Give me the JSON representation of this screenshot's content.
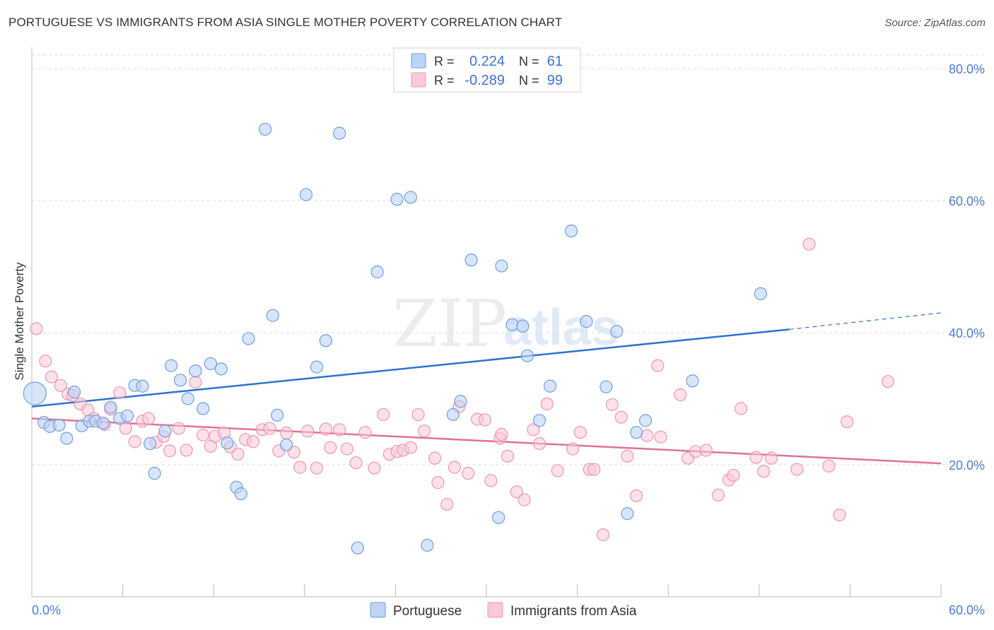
{
  "title": "PORTUGUESE VS IMMIGRANTS FROM ASIA SINGLE MOTHER POVERTY CORRELATION CHART",
  "source": "Source: ZipAtlas.com",
  "watermark": {
    "zip": "ZIP",
    "atlas": "atlas"
  },
  "colors": {
    "portuguese_fill": "#bcd3f5",
    "portuguese_stroke": "#6f9ee0",
    "portuguese_line": "#2f72d0",
    "asia_fill": "#f9c9d6",
    "asia_stroke": "#ec97b0",
    "asia_line": "#e07098",
    "axis_text": "#4a7fd4",
    "grid": "#dddddd"
  },
  "legend": {
    "rows": [
      {
        "r_label": "R =",
        "r_value": "0.224",
        "n_label": "N =",
        "n_value": "61"
      },
      {
        "r_label": "R =",
        "r_value": "-0.289",
        "n_label": "N =",
        "n_value": "99"
      }
    ]
  },
  "bottom_legend": [
    "Portuguese",
    "Immigrants from Asia"
  ],
  "chart_data": {
    "type": "scatter",
    "title": "PORTUGUESE VS IMMIGRANTS FROM ASIA SINGLE MOTHER POVERTY CORRELATION CHART",
    "xlabel": "",
    "ylabel": "Single Mother Poverty",
    "xlim": [
      0,
      60
    ],
    "ylim": [
      0,
      80
    ],
    "x_tick_labels": [
      "0.0%",
      "60.0%"
    ],
    "y_ticks": [
      20,
      40,
      60,
      80
    ],
    "y_tick_labels": [
      "20.0%",
      "40.0%",
      "60.0%",
      "80.0%"
    ],
    "grid": true,
    "legend_position": "top-center",
    "series": [
      {
        "name": "Portuguese",
        "r": 0.224,
        "n": 61,
        "trend": {
          "x0": 0,
          "y0": 28.8,
          "x1": 50,
          "y1": 40.5,
          "dash_to_x": 60,
          "dash_to_y": 43.0
        },
        "points": [
          [
            0.2,
            30.8
          ],
          [
            0.8,
            26.4
          ],
          [
            1.2,
            25.8
          ],
          [
            1.8,
            26.0
          ],
          [
            2.3,
            24.0
          ],
          [
            2.8,
            31.0
          ],
          [
            3.3,
            25.9
          ],
          [
            3.8,
            26.6
          ],
          [
            4.2,
            26.6
          ],
          [
            4.7,
            26.3
          ],
          [
            5.2,
            28.7
          ],
          [
            5.8,
            27.0
          ],
          [
            6.3,
            27.4
          ],
          [
            6.8,
            32.0
          ],
          [
            7.3,
            31.9
          ],
          [
            7.8,
            23.2
          ],
          [
            8.1,
            18.7
          ],
          [
            8.8,
            25.1
          ],
          [
            9.2,
            35.0
          ],
          [
            9.8,
            32.8
          ],
          [
            10.3,
            30.0
          ],
          [
            10.8,
            34.2
          ],
          [
            11.3,
            28.5
          ],
          [
            11.8,
            35.3
          ],
          [
            12.5,
            34.5
          ],
          [
            12.9,
            23.3
          ],
          [
            13.5,
            16.6
          ],
          [
            13.8,
            15.6
          ],
          [
            14.3,
            39.1
          ],
          [
            15.4,
            70.8
          ],
          [
            15.9,
            42.6
          ],
          [
            16.2,
            27.5
          ],
          [
            16.8,
            23.0
          ],
          [
            18.1,
            60.9
          ],
          [
            18.8,
            34.8
          ],
          [
            19.4,
            38.8
          ],
          [
            20.3,
            70.2
          ],
          [
            21.5,
            7.4
          ],
          [
            22.8,
            49.2
          ],
          [
            24.1,
            60.2
          ],
          [
            25.0,
            60.5
          ],
          [
            26.1,
            7.8
          ],
          [
            27.8,
            27.6
          ],
          [
            28.3,
            29.6
          ],
          [
            29.0,
            51.0
          ],
          [
            30.8,
            12.0
          ],
          [
            31.0,
            50.1
          ],
          [
            31.7,
            41.2
          ],
          [
            32.4,
            41.0
          ],
          [
            32.7,
            36.5
          ],
          [
            33.5,
            26.7
          ],
          [
            34.2,
            31.9
          ],
          [
            35.6,
            55.4
          ],
          [
            36.6,
            41.7
          ],
          [
            37.9,
            31.8
          ],
          [
            38.6,
            40.2
          ],
          [
            39.3,
            12.6
          ],
          [
            39.9,
            24.9
          ],
          [
            40.5,
            26.7
          ],
          [
            43.6,
            32.7
          ],
          [
            48.1,
            45.9
          ]
        ]
      },
      {
        "name": "Immigrants from Asia",
        "r": -0.289,
        "n": 99,
        "trend": {
          "x0": 0,
          "y0": 27.0,
          "x1": 60,
          "y1": 20.2
        },
        "points": [
          [
            0.3,
            40.6
          ],
          [
            0.9,
            35.7
          ],
          [
            1.3,
            33.3
          ],
          [
            1.9,
            32.0
          ],
          [
            2.4,
            30.7
          ],
          [
            2.7,
            30.5
          ],
          [
            3.2,
            29.2
          ],
          [
            3.7,
            28.3
          ],
          [
            4.1,
            27.0
          ],
          [
            4.8,
            26.1
          ],
          [
            5.2,
            28.4
          ],
          [
            5.8,
            30.9
          ],
          [
            6.2,
            25.5
          ],
          [
            6.8,
            23.5
          ],
          [
            7.3,
            26.6
          ],
          [
            7.7,
            27.0
          ],
          [
            8.2,
            23.4
          ],
          [
            8.7,
            24.3
          ],
          [
            9.1,
            22.1
          ],
          [
            9.7,
            25.5
          ],
          [
            10.2,
            22.2
          ],
          [
            10.8,
            32.5
          ],
          [
            11.3,
            24.5
          ],
          [
            11.8,
            22.8
          ],
          [
            12.1,
            24.3
          ],
          [
            12.7,
            24.8
          ],
          [
            13.1,
            22.7
          ],
          [
            13.6,
            21.6
          ],
          [
            14.1,
            23.8
          ],
          [
            14.6,
            23.5
          ],
          [
            15.2,
            25.3
          ],
          [
            15.7,
            25.5
          ],
          [
            16.3,
            22.1
          ],
          [
            16.8,
            24.8
          ],
          [
            17.3,
            21.9
          ],
          [
            17.7,
            19.6
          ],
          [
            18.2,
            25.1
          ],
          [
            18.8,
            19.5
          ],
          [
            19.4,
            25.4
          ],
          [
            19.7,
            22.6
          ],
          [
            20.3,
            25.3
          ],
          [
            20.8,
            22.4
          ],
          [
            21.4,
            20.3
          ],
          [
            22.0,
            24.9
          ],
          [
            22.6,
            19.5
          ],
          [
            23.2,
            27.6
          ],
          [
            23.6,
            21.6
          ],
          [
            24.1,
            22.0
          ],
          [
            24.5,
            22.2
          ],
          [
            25.0,
            22.6
          ],
          [
            25.5,
            27.6
          ],
          [
            25.9,
            25.1
          ],
          [
            26.6,
            21.0
          ],
          [
            26.8,
            17.3
          ],
          [
            27.4,
            14.0
          ],
          [
            27.9,
            19.6
          ],
          [
            28.2,
            28.8
          ],
          [
            28.8,
            18.7
          ],
          [
            29.4,
            26.9
          ],
          [
            29.9,
            26.8
          ],
          [
            30.3,
            17.6
          ],
          [
            30.9,
            24.0
          ],
          [
            31.0,
            24.6
          ],
          [
            31.4,
            21.3
          ],
          [
            32.0,
            15.9
          ],
          [
            32.5,
            14.7
          ],
          [
            33.1,
            25.3
          ],
          [
            33.5,
            23.2
          ],
          [
            34.0,
            29.2
          ],
          [
            34.7,
            19.1
          ],
          [
            35.7,
            22.4
          ],
          [
            36.2,
            24.9
          ],
          [
            36.8,
            19.3
          ],
          [
            37.1,
            19.3
          ],
          [
            37.7,
            9.4
          ],
          [
            38.3,
            29.1
          ],
          [
            38.9,
            27.2
          ],
          [
            39.3,
            21.3
          ],
          [
            39.9,
            15.3
          ],
          [
            40.6,
            24.4
          ],
          [
            41.3,
            35.0
          ],
          [
            41.5,
            24.2
          ],
          [
            42.8,
            30.6
          ],
          [
            43.3,
            21.0
          ],
          [
            43.8,
            22.0
          ],
          [
            44.5,
            22.2
          ],
          [
            45.3,
            15.4
          ],
          [
            46.0,
            17.7
          ],
          [
            46.3,
            18.4
          ],
          [
            46.8,
            28.5
          ],
          [
            47.8,
            21.1
          ],
          [
            48.3,
            19.0
          ],
          [
            48.8,
            21.0
          ],
          [
            50.5,
            19.3
          ],
          [
            51.3,
            53.4
          ],
          [
            52.6,
            19.8
          ],
          [
            53.3,
            12.4
          ],
          [
            53.8,
            26.5
          ],
          [
            56.5,
            32.6
          ]
        ]
      }
    ]
  }
}
